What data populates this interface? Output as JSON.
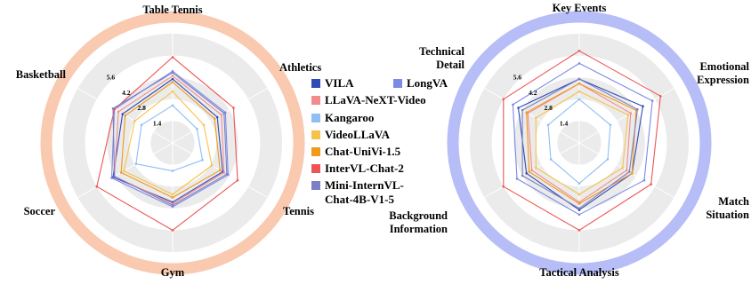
{
  "chart_data": [
    {
      "type": "radar",
      "categories": [
        "Table Tennis",
        "Athletics",
        "Tennis",
        "Gym",
        "Soccer",
        "Basketball"
      ],
      "ring_values": [
        1.4,
        2.8,
        4.2,
        5.6
      ],
      "ring_labels": [
        "1.4",
        "2.8",
        "4.2",
        "5.6"
      ],
      "range": [
        0,
        7
      ],
      "band_color": "#f9c9b0",
      "series": [
        {
          "name": "VILA",
          "values": [
            4.1,
            3.3,
            3.7,
            3.8,
            4.4,
            3.7
          ]
        },
        {
          "name": "LongVA",
          "values": [
            4.6,
            3.9,
            4.1,
            4.1,
            4.5,
            4.3
          ]
        },
        {
          "name": "LLaVA-NeXT-Video",
          "values": [
            4.3,
            3.6,
            3.8,
            3.9,
            4.3,
            4.0
          ]
        },
        {
          "name": "Kangaroo",
          "values": [
            2.4,
            1.8,
            2.2,
            1.8,
            2.7,
            2.3
          ]
        },
        {
          "name": "VideoLLaVA",
          "values": [
            3.3,
            2.3,
            2.9,
            3.3,
            3.6,
            2.8
          ]
        },
        {
          "name": "Chat-UniVi-1.5",
          "values": [
            3.9,
            3.1,
            3.5,
            3.5,
            3.8,
            3.5
          ]
        },
        {
          "name": "InterVL-Chat-2",
          "values": [
            5.5,
            4.5,
            4.8,
            5.6,
            5.6,
            4.3
          ]
        },
        {
          "name": "Mini-InternVL-Chat-4B-V1-5",
          "values": [
            4.5,
            3.8,
            4.0,
            4.0,
            4.3,
            4.4
          ]
        }
      ]
    },
    {
      "type": "radar",
      "categories": [
        "Key Events",
        "Emotional Expression",
        "Match Situation",
        "Tactical Analysis",
        "Background Information",
        "Technical Detail"
      ],
      "ring_values": [
        1.4,
        2.8,
        4.2,
        5.6
      ],
      "ring_labels": [
        "1.4",
        "2.8",
        "4.2",
        "5.6"
      ],
      "range": [
        0,
        7
      ],
      "band_color": "#b6bdf7",
      "series": [
        {
          "name": "VILA",
          "values": [
            4.1,
            4.7,
            3.9,
            4.3,
            3.9,
            4.5
          ]
        },
        {
          "name": "LongVA",
          "values": [
            5.1,
            5.4,
            4.8,
            4.6,
            4.6,
            4.9
          ]
        },
        {
          "name": "LLaVA-NeXT-Video",
          "values": [
            3.8,
            3.8,
            3.5,
            3.8,
            3.5,
            3.8
          ]
        },
        {
          "name": "Kangaroo",
          "values": [
            2.8,
            2.3,
            2.1,
            2.6,
            2.1,
            2.3
          ]
        },
        {
          "name": "VideoLLaVA",
          "values": [
            3.3,
            3.6,
            3.2,
            3.3,
            3.2,
            3.2
          ]
        },
        {
          "name": "Chat-UniVi-1.5",
          "values": [
            3.8,
            4.2,
            3.9,
            3.9,
            3.7,
            3.9
          ]
        },
        {
          "name": "InterVL-Chat-2",
          "values": [
            5.9,
            6.0,
            5.3,
            5.6,
            5.6,
            5.6
          ]
        },
        {
          "name": "Mini-InternVL-Chat-4B-V1-5",
          "values": [
            4.1,
            4.3,
            3.7,
            4.2,
            4.2,
            4.2
          ]
        }
      ]
    }
  ],
  "legend": {
    "items": [
      {
        "key": "VILA",
        "label": "VILA",
        "color": "#2e4bb5"
      },
      {
        "key": "LongVA",
        "label": "LongVA",
        "color": "#7b8ae6"
      },
      {
        "key": "LLaVA-NeXT-Video",
        "label": "LLaVA-NeXT-Video",
        "color": "#f28c8c"
      },
      {
        "key": "Kangaroo",
        "label": "Kangaroo",
        "color": "#8fbff2"
      },
      {
        "key": "VideoLLaVA",
        "label": "VideoLLaVA",
        "color": "#f7c24a"
      },
      {
        "key": "Chat-UniVi-1.5",
        "label": "Chat-UniVi-1.5",
        "color": "#f09a1a"
      },
      {
        "key": "InterVL-Chat-2",
        "label": "InterVL-Chat-2",
        "color": "#ef5454"
      },
      {
        "key": "Mini-InternVL-Chat-4B-V1-5",
        "label": [
          "Mini-InternVL-",
          "Chat-4B-V1-5"
        ],
        "color": "#7d7fc4"
      }
    ]
  }
}
